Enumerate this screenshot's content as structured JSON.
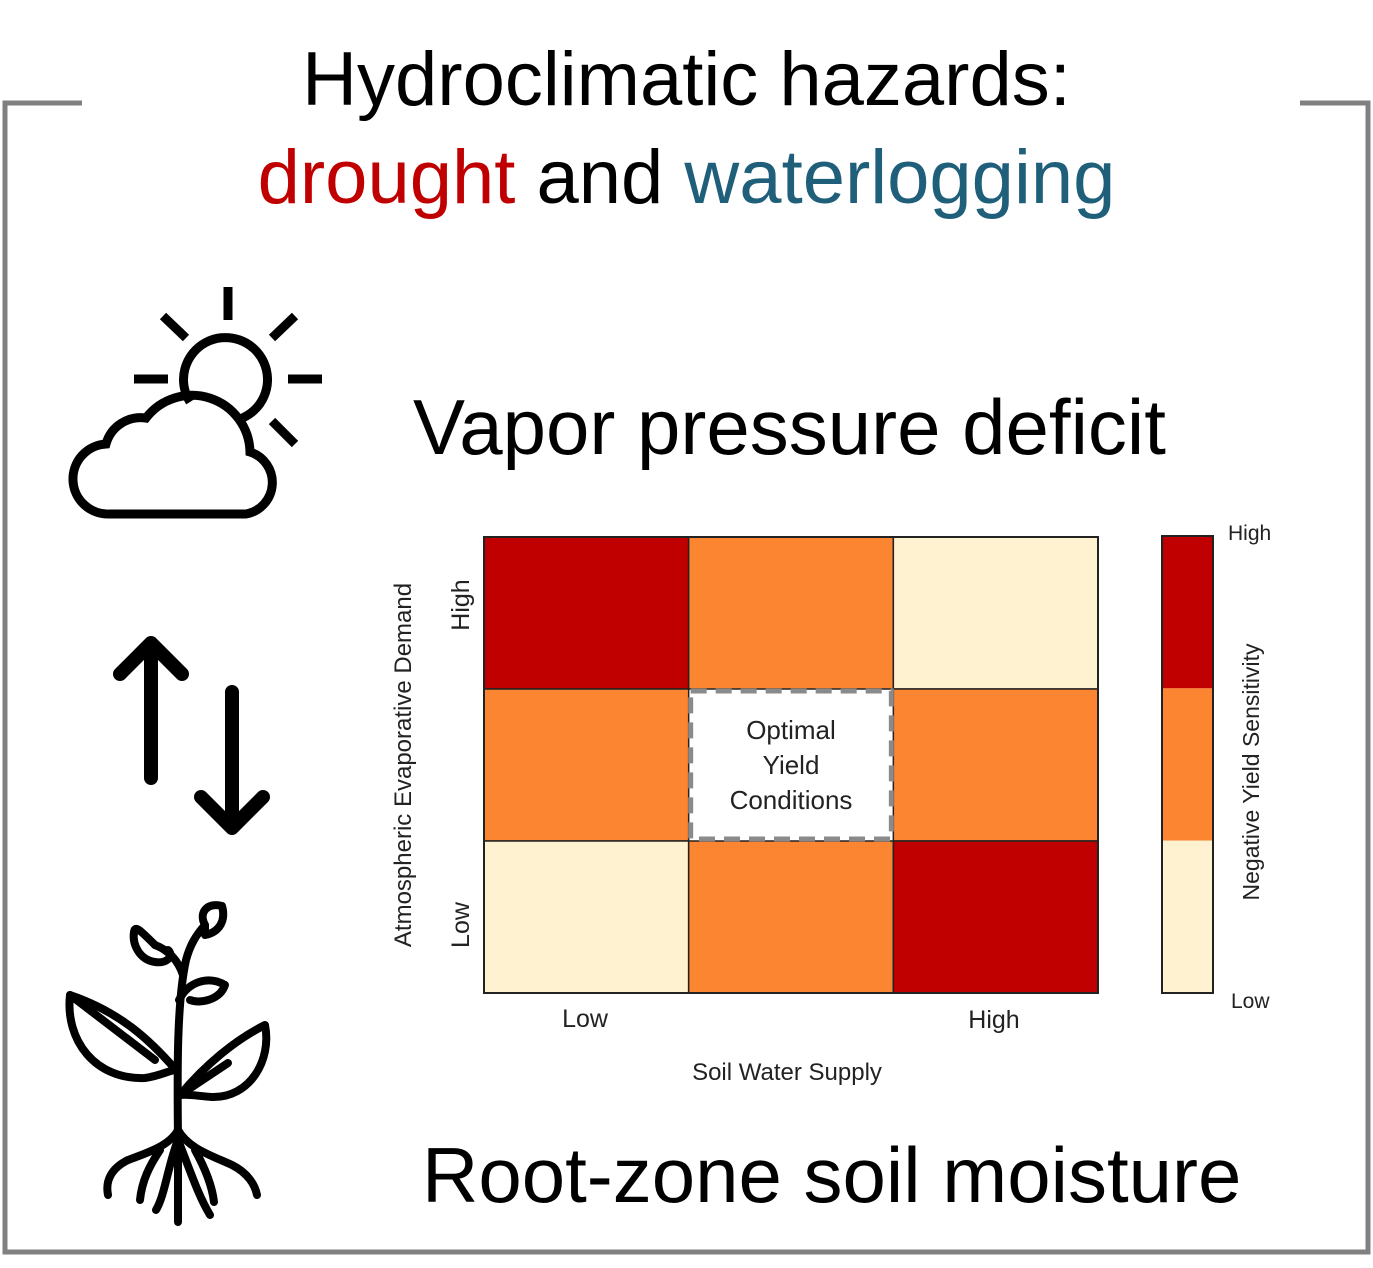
{
  "title": {
    "line1": "Hydroclimatic hazards:",
    "drought": "drought",
    "and": " and ",
    "waterlogging": "waterlogging"
  },
  "labels": {
    "vpd": "Vapor pressure deficit",
    "rzsm": "Root-zone soil moisture"
  },
  "icons": [
    "sun-cloud-icon",
    "up-down-arrows-icon",
    "plant-icon"
  ],
  "colors": {
    "drought": "#c00000",
    "waterlogging": "#1f5f7a",
    "high": "#c00000",
    "medium": "#fb8530",
    "low": "#fef2d0",
    "frame": "#808080"
  },
  "chart_data": {
    "type": "heatmap",
    "xlabel": "Soil Water Supply",
    "ylabel": "Atmospheric Evaporative Demand",
    "x_tick_labels": [
      "Low",
      "High"
    ],
    "y_tick_labels": [
      "Low",
      "High"
    ],
    "rows_top_to_bottom": [
      [
        "high",
        "medium",
        "low"
      ],
      [
        "medium",
        "optimal",
        "medium"
      ],
      [
        "low",
        "medium",
        "high"
      ]
    ],
    "optimal_label": [
      "Optimal",
      "Yield",
      "Conditions"
    ],
    "legend": {
      "title": "Negative Yield Sensitivity",
      "top_label": "High",
      "bottom_label": "Low",
      "levels_top_to_bottom": [
        "high",
        "medium",
        "low"
      ]
    }
  }
}
